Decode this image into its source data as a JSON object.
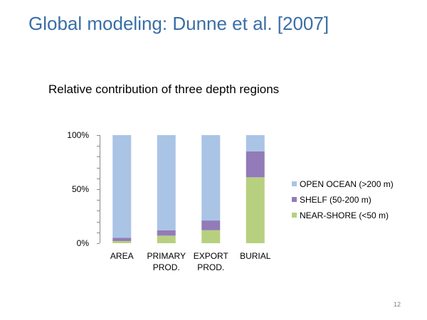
{
  "slide": {
    "title": "Global modeling: Dunne et al. [2007]",
    "page_number": "12"
  },
  "colors": {
    "title": "#3a6ea5",
    "open_ocean": "#aac4e6",
    "shelf": "#927bb8",
    "near_shore": "#b7d07f",
    "axis": "#898989"
  },
  "chart_data": {
    "type": "bar",
    "stacked": true,
    "title": "Relative contribution of three depth regions",
    "categories": [
      [
        "AREA"
      ],
      [
        "PRIMARY",
        "PROD."
      ],
      [
        "EXPORT",
        "PROD."
      ],
      [
        "BURIAL"
      ]
    ],
    "series": [
      {
        "name": "NEAR-SHORE (<50 m)",
        "values": [
          2,
          7,
          12,
          61
        ]
      },
      {
        "name": "SHELF (50-200 m)",
        "values": [
          3,
          5,
          9,
          24
        ]
      },
      {
        "name": "OPEN OCEAN (>200 m)",
        "values": [
          95,
          88,
          79,
          15
        ]
      }
    ],
    "ylim": [
      0,
      100
    ],
    "yticks": [
      "0%",
      "50%",
      "100%"
    ],
    "legend_position": "right",
    "grid": false
  }
}
